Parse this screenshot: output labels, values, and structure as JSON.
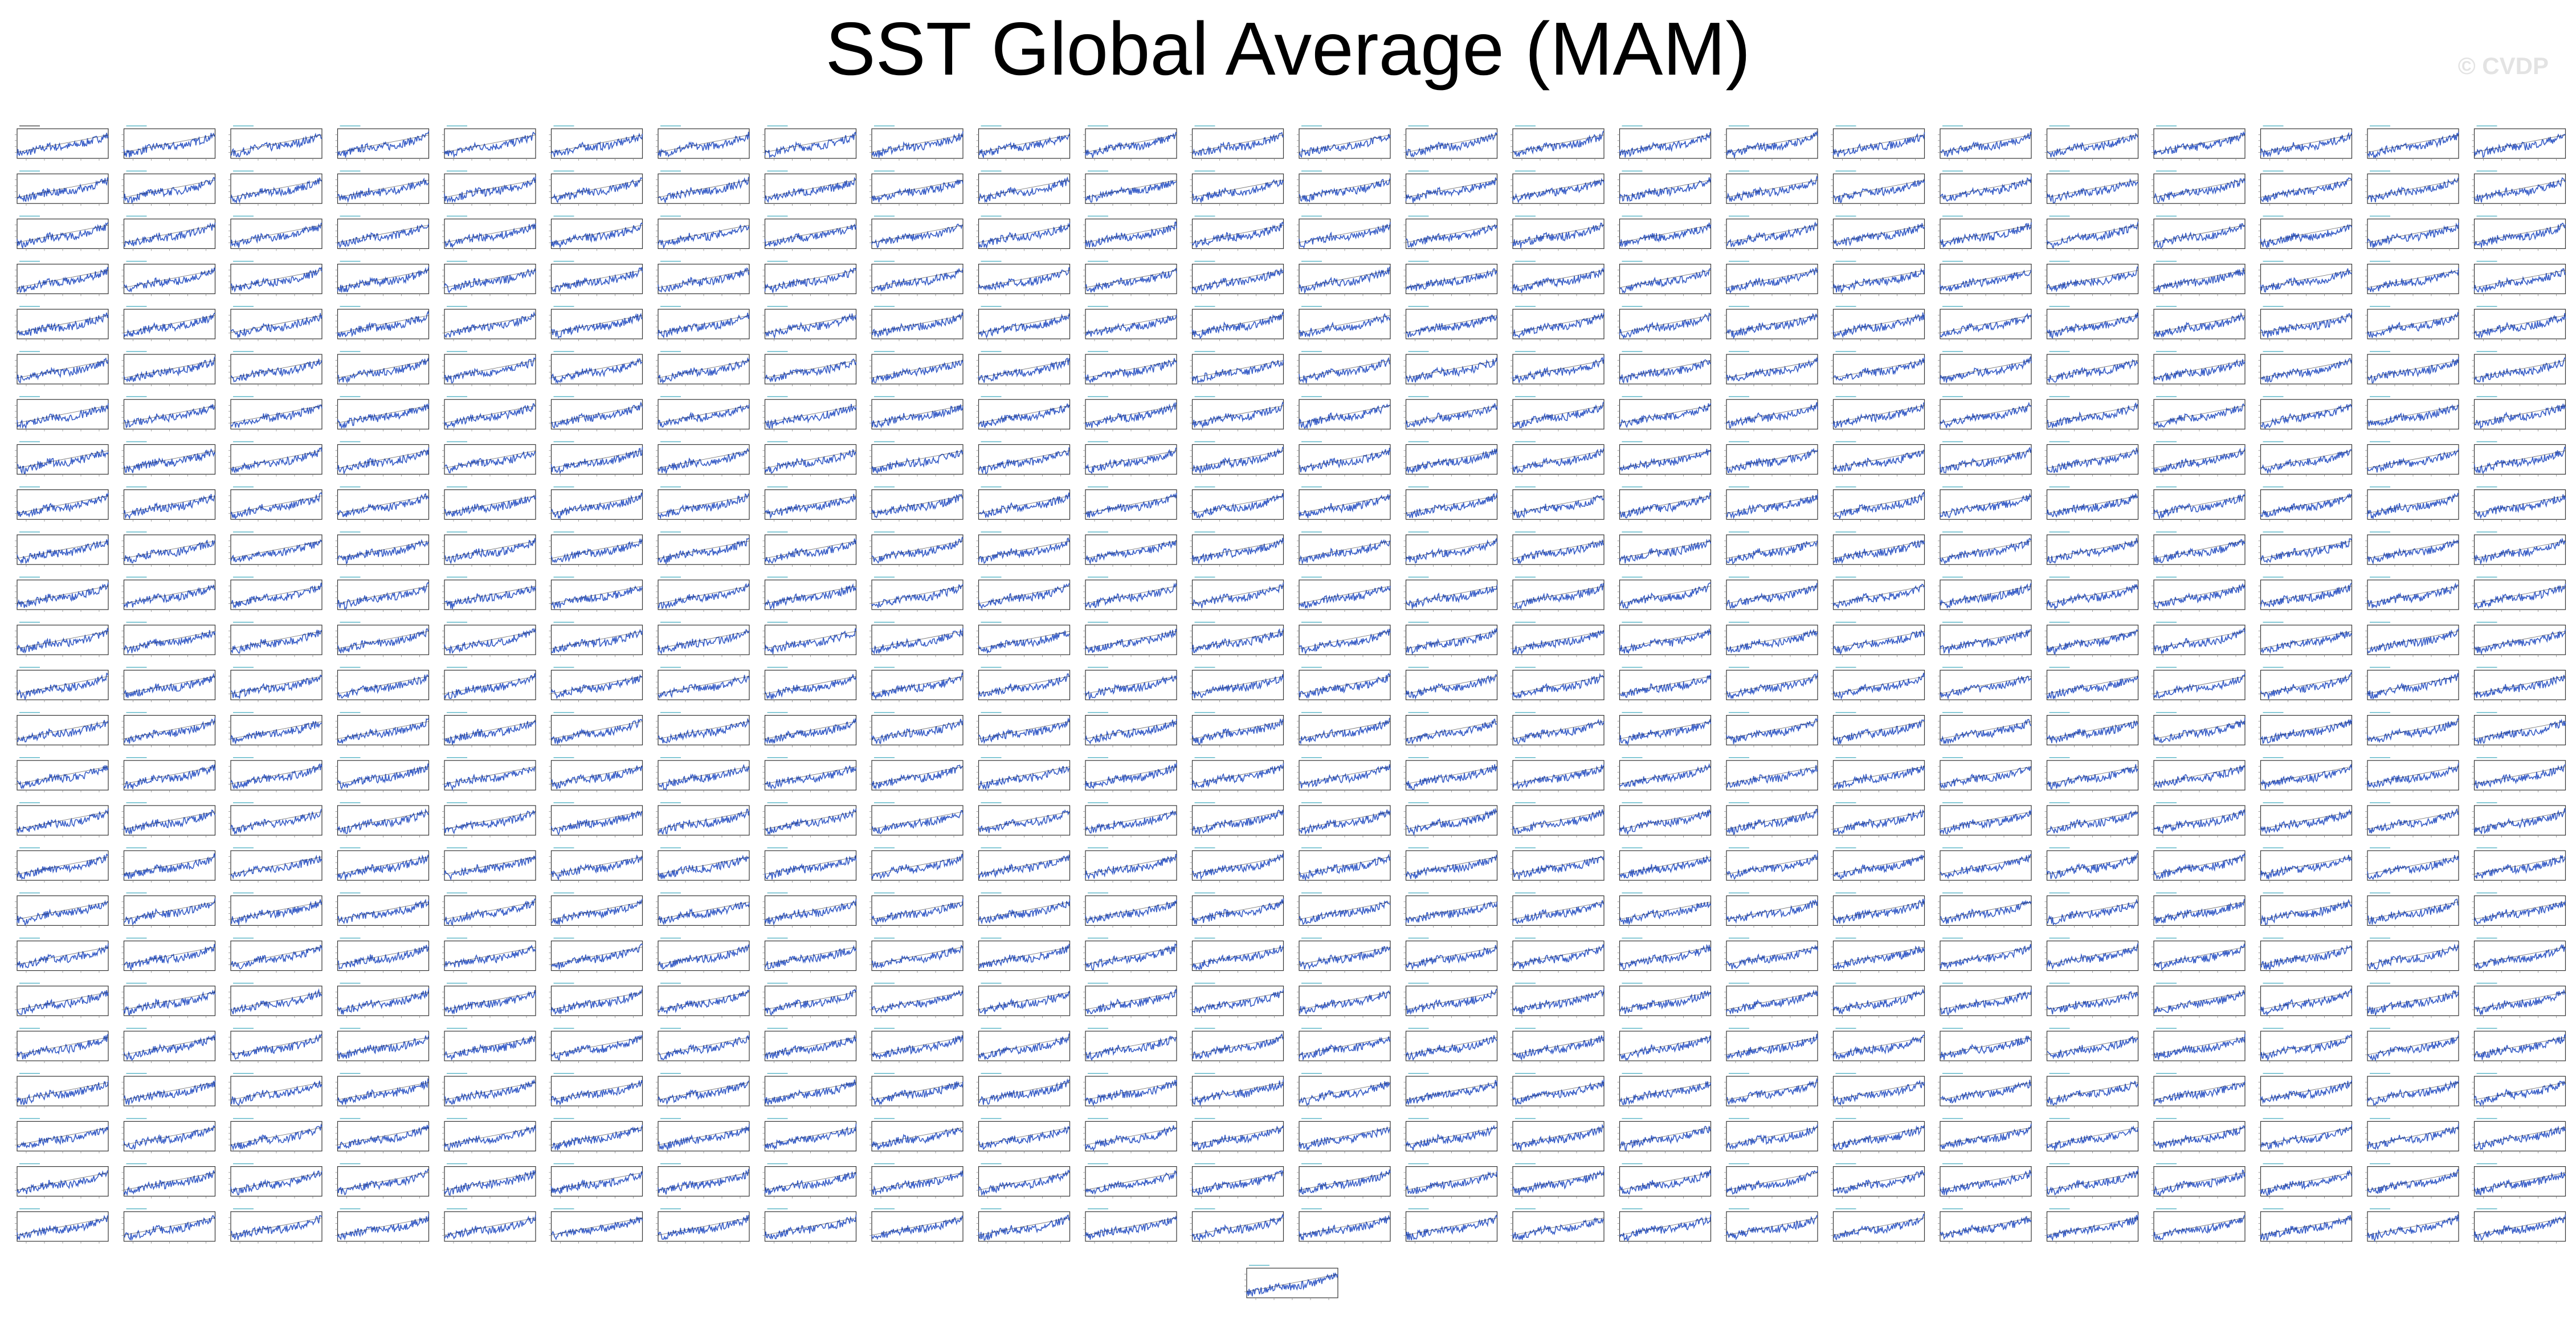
{
  "figure": {
    "title": "SST Global Average (MAM)",
    "watermark": "© CVDP"
  },
  "chart_data": {
    "type": "line",
    "title": "SST Global Average (MAM)",
    "layout": {
      "columns": 24,
      "rows": 25,
      "extra_panel": "bottom-center"
    },
    "series_color": "#3a5fc8",
    "trend_color": "#111111",
    "x_range": [
      1900,
      2014
    ],
    "y_range": [
      -0.6,
      0.6
    ],
    "series_count": 601,
    "representative_series": {
      "x": [
        1900,
        1905,
        1910,
        1915,
        1920,
        1925,
        1930,
        1935,
        1940,
        1945,
        1950,
        1955,
        1960,
        1965,
        1970,
        1975,
        1980,
        1985,
        1990,
        1995,
        2000,
        2005,
        2010,
        2014
      ],
      "y": [
        -0.35,
        -0.4,
        -0.42,
        -0.32,
        -0.3,
        -0.25,
        -0.2,
        -0.18,
        -0.1,
        -0.12,
        -0.15,
        -0.14,
        -0.1,
        -0.12,
        -0.08,
        -0.05,
        0.0,
        0.02,
        0.08,
        0.12,
        0.18,
        0.22,
        0.28,
        0.35
      ]
    },
    "grid": false,
    "legend": "none"
  }
}
